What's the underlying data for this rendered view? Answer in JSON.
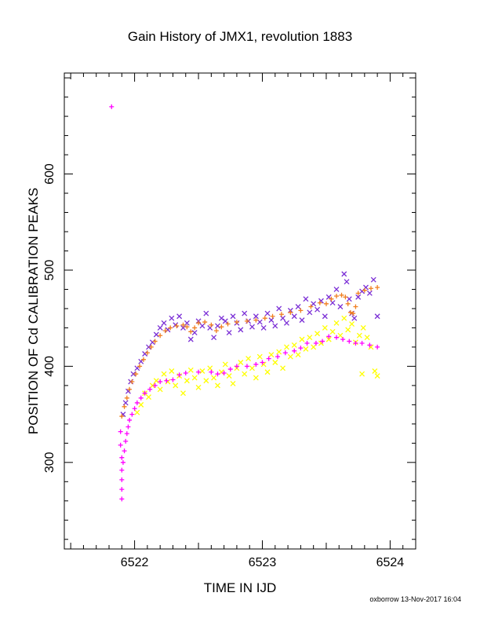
{
  "chart_data": {
    "type": "scatter",
    "title": "Gain History of JMX1, revolution 1883",
    "xlabel": "TIME IN IJD",
    "ylabel": "POSITION OF Cd CALIBRATION PEAKS",
    "xlim": [
      6521.45,
      6524.2
    ],
    "ylim": [
      210,
      705
    ],
    "xticks": [
      6522,
      6523,
      6524
    ],
    "yticks": [
      300,
      400,
      500,
      600
    ],
    "grid": false,
    "legend": "none",
    "footer": "oxborrow 13-Nov-2017 16:04",
    "series": [
      {
        "marker": "x",
        "color": "#7b2fd6",
        "points": [
          [
            6521.91,
            350
          ],
          [
            6521.93,
            362
          ],
          [
            6521.95,
            374
          ],
          [
            6521.97,
            384
          ],
          [
            6521.99,
            392
          ],
          [
            6522.02,
            398
          ],
          [
            6522.05,
            405
          ],
          [
            6522.08,
            413
          ],
          [
            6522.11,
            420
          ],
          [
            6522.14,
            425
          ],
          [
            6522.17,
            433
          ],
          [
            6522.2,
            440
          ],
          [
            6522.23,
            445
          ],
          [
            6522.26,
            438
          ],
          [
            6522.29,
            450
          ],
          [
            6522.32,
            443
          ],
          [
            6522.35,
            452
          ],
          [
            6522.38,
            440
          ],
          [
            6522.41,
            445
          ],
          [
            6522.44,
            428
          ],
          [
            6522.47,
            435
          ],
          [
            6522.5,
            447
          ],
          [
            6522.53,
            442
          ],
          [
            6522.56,
            455
          ],
          [
            6522.59,
            440
          ],
          [
            6522.62,
            430
          ],
          [
            6522.65,
            442
          ],
          [
            6522.68,
            450
          ],
          [
            6522.71,
            447
          ],
          [
            6522.74,
            435
          ],
          [
            6522.77,
            452
          ],
          [
            6522.8,
            445
          ],
          [
            6522.83,
            438
          ],
          [
            6522.86,
            455
          ],
          [
            6522.89,
            447
          ],
          [
            6522.92,
            441
          ],
          [
            6522.95,
            452
          ],
          [
            6522.98,
            446
          ],
          [
            6523.01,
            440
          ],
          [
            6523.04,
            455
          ],
          [
            6523.07,
            448
          ],
          [
            6523.1,
            442
          ],
          [
            6523.13,
            460
          ],
          [
            6523.16,
            450
          ],
          [
            6523.19,
            445
          ],
          [
            6523.22,
            458
          ],
          [
            6523.25,
            452
          ],
          [
            6523.28,
            462
          ],
          [
            6523.31,
            448
          ],
          [
            6523.34,
            470
          ],
          [
            6523.37,
            456
          ],
          [
            6523.4,
            465
          ],
          [
            6523.43,
            459
          ],
          [
            6523.46,
            468
          ],
          [
            6523.49,
            452
          ],
          [
            6523.52,
            472
          ],
          [
            6523.55,
            466
          ],
          [
            6523.58,
            480
          ],
          [
            6523.61,
            462
          ],
          [
            6523.64,
            496
          ],
          [
            6523.66,
            488
          ],
          [
            6523.68,
            470
          ],
          [
            6523.7,
            455
          ],
          [
            6523.72,
            450
          ],
          [
            6523.75,
            472
          ],
          [
            6523.78,
            478
          ],
          [
            6523.81,
            482
          ],
          [
            6523.84,
            476
          ],
          [
            6523.87,
            490
          ],
          [
            6523.9,
            452
          ]
        ]
      },
      {
        "marker": "+",
        "color": "#f07f1f",
        "points": [
          [
            6521.9,
            348
          ],
          [
            6521.92,
            358
          ],
          [
            6521.94,
            367
          ],
          [
            6521.96,
            376
          ],
          [
            6521.98,
            384
          ],
          [
            6522.01,
            392
          ],
          [
            6522.04,
            400
          ],
          [
            6522.07,
            407
          ],
          [
            6522.1,
            414
          ],
          [
            6522.13,
            420
          ],
          [
            6522.16,
            426
          ],
          [
            6522.2,
            432
          ],
          [
            6522.24,
            437
          ],
          [
            6522.28,
            440
          ],
          [
            6522.33,
            442
          ],
          [
            6522.38,
            443
          ],
          [
            6522.41,
            441
          ],
          [
            6522.44,
            436
          ],
          [
            6522.47,
            440
          ],
          [
            6522.5,
            445
          ],
          [
            6522.55,
            446
          ],
          [
            6522.6,
            443
          ],
          [
            6522.64,
            437
          ],
          [
            6522.68,
            441
          ],
          [
            6522.73,
            444
          ],
          [
            6522.8,
            446
          ],
          [
            6522.88,
            447
          ],
          [
            6522.95,
            448
          ],
          [
            6523.02,
            450
          ],
          [
            6523.08,
            452
          ],
          [
            6523.15,
            454
          ],
          [
            6523.22,
            456
          ],
          [
            6523.3,
            458
          ],
          [
            6523.38,
            462
          ],
          [
            6523.45,
            466
          ],
          [
            6523.5,
            465
          ],
          [
            6523.54,
            470
          ],
          [
            6523.58,
            473
          ],
          [
            6523.62,
            474
          ],
          [
            6523.65,
            472
          ],
          [
            6523.67,
            465
          ],
          [
            6523.69,
            456
          ],
          [
            6523.71,
            455
          ],
          [
            6523.73,
            462
          ],
          [
            6523.75,
            476
          ],
          [
            6523.8,
            479
          ],
          [
            6523.85,
            481
          ],
          [
            6523.9,
            482
          ]
        ]
      },
      {
        "marker": "x",
        "color": "#ffff00",
        "points": [
          [
            6522.02,
            352
          ],
          [
            6522.05,
            360
          ],
          [
            6522.08,
            372
          ],
          [
            6522.11,
            368
          ],
          [
            6522.14,
            380
          ],
          [
            6522.17,
            385
          ],
          [
            6522.2,
            376
          ],
          [
            6522.23,
            392
          ],
          [
            6522.26,
            384
          ],
          [
            6522.29,
            395
          ],
          [
            6522.32,
            380
          ],
          [
            6522.35,
            390
          ],
          [
            6522.38,
            372
          ],
          [
            6522.41,
            385
          ],
          [
            6522.44,
            396
          ],
          [
            6522.47,
            388
          ],
          [
            6522.5,
            378
          ],
          [
            6522.53,
            395
          ],
          [
            6522.56,
            385
          ],
          [
            6522.59,
            398
          ],
          [
            6522.62,
            388
          ],
          [
            6522.65,
            380
          ],
          [
            6522.68,
            394
          ],
          [
            6522.71,
            402
          ],
          [
            6522.74,
            390
          ],
          [
            6522.77,
            382
          ],
          [
            6522.8,
            398
          ],
          [
            6522.83,
            404
          ],
          [
            6522.86,
            392
          ],
          [
            6522.89,
            408
          ],
          [
            6522.92,
            398
          ],
          [
            6522.95,
            388
          ],
          [
            6522.98,
            410
          ],
          [
            6523.01,
            402
          ],
          [
            6523.04,
            394
          ],
          [
            6523.07,
            412
          ],
          [
            6523.1,
            404
          ],
          [
            6523.13,
            415
          ],
          [
            6523.16,
            398
          ],
          [
            6523.19,
            420
          ],
          [
            6523.22,
            410
          ],
          [
            6523.25,
            422
          ],
          [
            6523.28,
            412
          ],
          [
            6523.31,
            428
          ],
          [
            6523.34,
            418
          ],
          [
            6523.37,
            430
          ],
          [
            6523.4,
            420
          ],
          [
            6523.43,
            434
          ],
          [
            6523.46,
            424
          ],
          [
            6523.49,
            440
          ],
          [
            6523.52,
            428
          ],
          [
            6523.55,
            436
          ],
          [
            6523.58,
            445
          ],
          [
            6523.61,
            432
          ],
          [
            6523.64,
            450
          ],
          [
            6523.67,
            438
          ],
          [
            6523.7,
            444
          ],
          [
            6523.73,
            425
          ],
          [
            6523.76,
            432
          ],
          [
            6523.79,
            440
          ],
          [
            6523.82,
            430
          ],
          [
            6523.85,
            420
          ],
          [
            6523.88,
            395
          ],
          [
            6523.9,
            390
          ],
          [
            6523.78,
            392
          ]
        ]
      },
      {
        "marker": "+",
        "color": "#ff00ff",
        "points": [
          [
            6521.82,
            670
          ],
          [
            6521.89,
            332
          ],
          [
            6521.89,
            318
          ],
          [
            6521.9,
            305
          ],
          [
            6521.9,
            292
          ],
          [
            6521.9,
            282
          ],
          [
            6521.9,
            272
          ],
          [
            6521.9,
            262
          ],
          [
            6521.91,
            300
          ],
          [
            6521.92,
            312
          ],
          [
            6521.93,
            322
          ],
          [
            6521.94,
            330
          ],
          [
            6521.95,
            337
          ],
          [
            6521.96,
            344
          ],
          [
            6521.98,
            350
          ],
          [
            6522.0,
            356
          ],
          [
            6522.02,
            362
          ],
          [
            6522.05,
            367
          ],
          [
            6522.08,
            372
          ],
          [
            6522.12,
            376
          ],
          [
            6522.16,
            380
          ],
          [
            6522.2,
            384
          ],
          [
            6522.25,
            385
          ],
          [
            6522.3,
            386
          ],
          [
            6522.35,
            391
          ],
          [
            6522.4,
            393
          ],
          [
            6522.5,
            394
          ],
          [
            6522.6,
            394
          ],
          [
            6522.65,
            392
          ],
          [
            6522.7,
            393
          ],
          [
            6522.75,
            397
          ],
          [
            6522.8,
            400
          ],
          [
            6522.88,
            400
          ],
          [
            6522.95,
            402
          ],
          [
            6523.0,
            404
          ],
          [
            6523.05,
            408
          ],
          [
            6523.12,
            410
          ],
          [
            6523.18,
            414
          ],
          [
            6523.25,
            416
          ],
          [
            6523.3,
            419
          ],
          [
            6523.35,
            424
          ],
          [
            6523.42,
            424
          ],
          [
            6523.47,
            426
          ],
          [
            6523.52,
            431
          ],
          [
            6523.58,
            430
          ],
          [
            6523.63,
            428
          ],
          [
            6523.68,
            426
          ],
          [
            6523.73,
            424
          ],
          [
            6523.78,
            424
          ],
          [
            6523.84,
            422
          ],
          [
            6523.9,
            420
          ]
        ]
      }
    ]
  }
}
